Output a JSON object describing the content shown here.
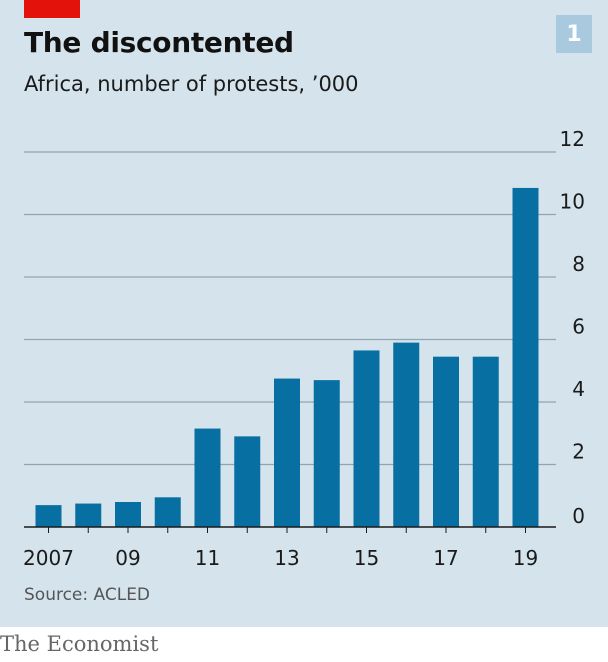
{
  "header": {
    "title": "The discontented",
    "subtitle": "Africa, number of protests, ’000",
    "chart_number": "1"
  },
  "footer": {
    "source": "Source: ACLED",
    "brand": "The Economist"
  },
  "colors": {
    "background": "#d4e3ec",
    "bar": "#076fa2",
    "grid": "#8fa5b1",
    "accent": "#e3120b"
  },
  "chart_data": {
    "type": "bar",
    "title": "The discontented",
    "subtitle": "Africa, number of protests, ’000",
    "categories": [
      "2007",
      "2008",
      "2009",
      "2010",
      "2011",
      "2012",
      "2013",
      "2014",
      "2015",
      "2016",
      "2017",
      "2018",
      "2019"
    ],
    "x_tick_labels": [
      "2007",
      "",
      "09",
      "",
      "11",
      "",
      "13",
      "",
      "15",
      "",
      "17",
      "",
      "19"
    ],
    "values": [
      0.7,
      0.75,
      0.8,
      0.95,
      3.15,
      2.9,
      4.75,
      4.7,
      5.65,
      5.9,
      5.45,
      5.45,
      10.85
    ],
    "ylim": [
      0,
      12
    ],
    "yticks": [
      0,
      2,
      4,
      6,
      8,
      10,
      12
    ],
    "y_axis_position": "right",
    "grid": true,
    "source": "Source: ACLED"
  }
}
